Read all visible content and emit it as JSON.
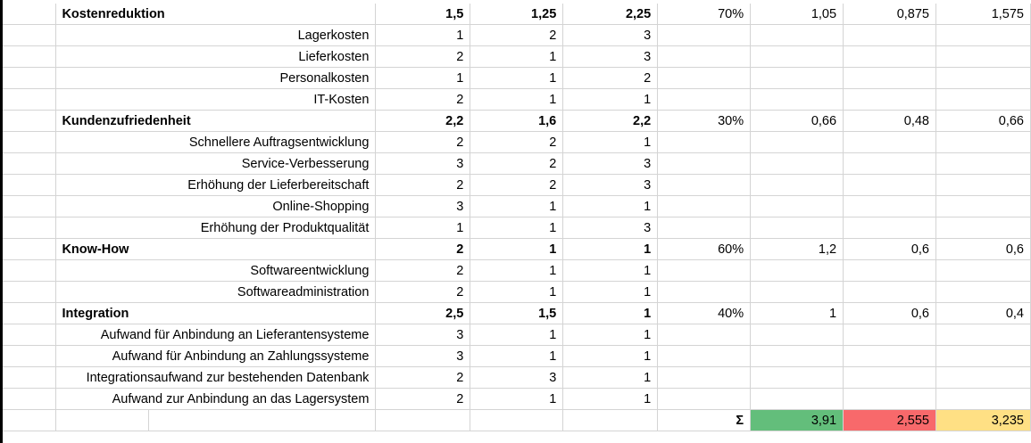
{
  "sheet": {
    "rows": [
      {
        "label": "Kostenreduktion",
        "group": true,
        "a": "1,5",
        "b": "1,25",
        "c": "2,25",
        "weight": "70%",
        "wa": "1,05",
        "wb": "0,875",
        "wc": "1,575"
      },
      {
        "label": "Lagerkosten",
        "group": false,
        "a": "1",
        "b": "2",
        "c": "3",
        "weight": "",
        "wa": "",
        "wb": "",
        "wc": ""
      },
      {
        "label": "Lieferkosten",
        "group": false,
        "a": "2",
        "b": "1",
        "c": "3",
        "weight": "",
        "wa": "",
        "wb": "",
        "wc": ""
      },
      {
        "label": "Personalkosten",
        "group": false,
        "a": "1",
        "b": "1",
        "c": "2",
        "weight": "",
        "wa": "",
        "wb": "",
        "wc": ""
      },
      {
        "label": "IT-Kosten",
        "group": false,
        "a": "2",
        "b": "1",
        "c": "1",
        "weight": "",
        "wa": "",
        "wb": "",
        "wc": ""
      },
      {
        "label": "Kundenzufriedenheit",
        "group": true,
        "a": "2,2",
        "b": "1,6",
        "c": "2,2",
        "weight": "30%",
        "wa": "0,66",
        "wb": "0,48",
        "wc": "0,66"
      },
      {
        "label": "Schnellere Auftragsentwicklung",
        "group": false,
        "a": "2",
        "b": "2",
        "c": "1",
        "weight": "",
        "wa": "",
        "wb": "",
        "wc": ""
      },
      {
        "label": "Service-Verbesserung",
        "group": false,
        "a": "3",
        "b": "2",
        "c": "3",
        "weight": "",
        "wa": "",
        "wb": "",
        "wc": ""
      },
      {
        "label": "Erhöhung der Lieferbereitschaft",
        "group": false,
        "a": "2",
        "b": "2",
        "c": "3",
        "weight": "",
        "wa": "",
        "wb": "",
        "wc": ""
      },
      {
        "label": "Online-Shopping",
        "group": false,
        "a": "3",
        "b": "1",
        "c": "1",
        "weight": "",
        "wa": "",
        "wb": "",
        "wc": ""
      },
      {
        "label": "Erhöhung der Produktqualität",
        "group": false,
        "a": "1",
        "b": "1",
        "c": "3",
        "weight": "",
        "wa": "",
        "wb": "",
        "wc": ""
      },
      {
        "label": "Know-How",
        "group": true,
        "a": "2",
        "b": "1",
        "c": "1",
        "weight": "60%",
        "wa": "1,2",
        "wb": "0,6",
        "wc": "0,6"
      },
      {
        "label": "Softwareentwicklung",
        "group": false,
        "a": "2",
        "b": "1",
        "c": "1",
        "weight": "",
        "wa": "",
        "wb": "",
        "wc": ""
      },
      {
        "label": "Softwareadministration",
        "group": false,
        "a": "2",
        "b": "1",
        "c": "1",
        "weight": "",
        "wa": "",
        "wb": "",
        "wc": ""
      },
      {
        "label": "Integration",
        "group": true,
        "a": "2,5",
        "b": "1,5",
        "c": "1",
        "weight": "40%",
        "wa": "1",
        "wb": "0,6",
        "wc": "0,4"
      },
      {
        "label": "Aufwand für Anbindung an Lieferantensysteme",
        "group": false,
        "a": "3",
        "b": "1",
        "c": "1",
        "weight": "",
        "wa": "",
        "wb": "",
        "wc": ""
      },
      {
        "label": "Aufwand für Anbindung an Zahlungssysteme",
        "group": false,
        "a": "3",
        "b": "1",
        "c": "1",
        "weight": "",
        "wa": "",
        "wb": "",
        "wc": ""
      },
      {
        "label": "Integrationsaufwand zur bestehenden Datenbank",
        "group": false,
        "a": "2",
        "b": "3",
        "c": "1",
        "weight": "",
        "wa": "",
        "wb": "",
        "wc": ""
      },
      {
        "label": "Aufwand zur Anbindung an das Lagersystem",
        "group": false,
        "a": "2",
        "b": "1",
        "c": "1",
        "weight": "",
        "wa": "",
        "wb": "",
        "wc": ""
      }
    ],
    "totals": {
      "symbol": "Σ",
      "a": "3,91",
      "b": "2,555",
      "c": "3,235"
    },
    "colors": {
      "green": "#63be7b",
      "red": "#f8696b",
      "yellow": "#ffe084"
    }
  }
}
